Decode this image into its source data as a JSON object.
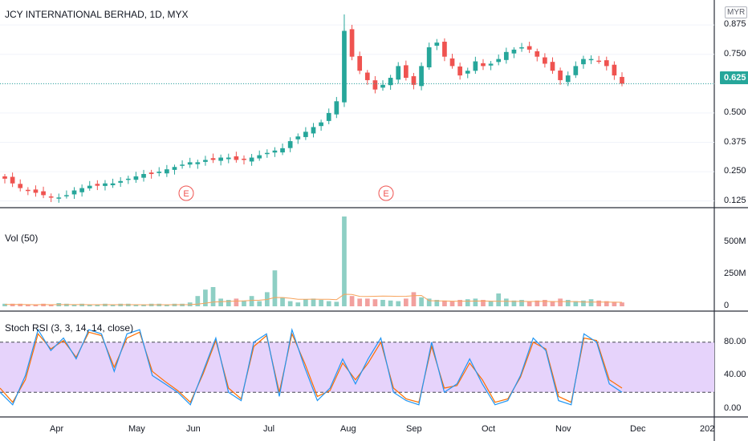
{
  "header": {
    "symbol_title": "JCY INTERNATIONAL BERHAD, 1D, MYX",
    "currency": "MYR"
  },
  "price_pane": {
    "current_price": "0.625",
    "y_ticks": [
      "0.125",
      "0.250",
      "0.375",
      "0.500",
      "0.625",
      "0.750",
      "0.875"
    ],
    "earnings_marker": "E"
  },
  "volume_pane": {
    "title": "Vol (50)",
    "y_ticks": [
      "0",
      "250M",
      "500M"
    ]
  },
  "stoch_pane": {
    "title": "Stoch RSI (3, 3, 14, 14, close)",
    "y_ticks": [
      "0.00",
      "40.00",
      "80.00"
    ],
    "upper_band": 80,
    "lower_band": 20
  },
  "x_axis": {
    "labels": [
      "Apr",
      "May",
      "Jun",
      "Jul",
      "Aug",
      "Sep",
      "Oct",
      "Nov",
      "Dec",
      "202"
    ]
  },
  "colors": {
    "up": "#26a69a",
    "down": "#ef5350",
    "vol_up": "#8ecfc4",
    "vol_down": "#f2a09e",
    "ma_line": "#f7a35c",
    "k_line": "#2196f3",
    "d_line": "#ff6d00",
    "band_fill": "#e6d3fb",
    "price_line": "#26a69a"
  },
  "chart_data": {
    "type": "candlestick",
    "x_start": "2020-03-18",
    "x_end": "2020-11-24",
    "ylim": [
      0.1,
      0.92
    ],
    "close_series": [
      0.22,
      0.2,
      0.18,
      0.17,
      0.16,
      0.15,
      0.14,
      0.14,
      0.15,
      0.17,
      0.18,
      0.19,
      0.19,
      0.2,
      0.2,
      0.21,
      0.22,
      0.23,
      0.24,
      0.24,
      0.25,
      0.26,
      0.27,
      0.28,
      0.29,
      0.29,
      0.3,
      0.3,
      0.31,
      0.31,
      0.3,
      0.3,
      0.31,
      0.32,
      0.33,
      0.34,
      0.35,
      0.38,
      0.4,
      0.42,
      0.44,
      0.46,
      0.5,
      0.55,
      0.85,
      0.74,
      0.68,
      0.64,
      0.6,
      0.62,
      0.65,
      0.7,
      0.65,
      0.62,
      0.7,
      0.78,
      0.8,
      0.74,
      0.7,
      0.66,
      0.68,
      0.72,
      0.7,
      0.71,
      0.73,
      0.76,
      0.77,
      0.78,
      0.77,
      0.74,
      0.71,
      0.68,
      0.64,
      0.66,
      0.7,
      0.73,
      0.73,
      0.72,
      0.7,
      0.66,
      0.625
    ],
    "volume_series": [
      20,
      20,
      20,
      15,
      15,
      20,
      15,
      25,
      20,
      15,
      20,
      15,
      15,
      20,
      15,
      20,
      20,
      15,
      15,
      20,
      20,
      15,
      20,
      20,
      30,
      80,
      130,
      150,
      60,
      50,
      60,
      45,
      80,
      40,
      110,
      280,
      70,
      40,
      30,
      55,
      60,
      50,
      40,
      35,
      700,
      80,
      60,
      60,
      55,
      50,
      45,
      40,
      60,
      110,
      70,
      60,
      50,
      45,
      40,
      50,
      55,
      60,
      50,
      40,
      100,
      60,
      45,
      50,
      40,
      45,
      50,
      40,
      60,
      50,
      40,
      45,
      55,
      45,
      40,
      35,
      30
    ],
    "stoch_k": [
      20,
      5,
      40,
      95,
      70,
      85,
      60,
      95,
      90,
      45,
      90,
      95,
      40,
      30,
      20,
      5,
      45,
      85,
      20,
      10,
      80,
      90,
      15,
      95,
      50,
      10,
      25,
      60,
      30,
      60,
      85,
      20,
      10,
      5,
      80,
      20,
      30,
      60,
      30,
      5,
      10,
      40,
      85,
      70,
      10,
      5,
      90,
      80,
      30,
      20
    ],
    "stoch_d": [
      25,
      8,
      35,
      90,
      72,
      82,
      62,
      92,
      88,
      50,
      85,
      92,
      45,
      33,
      22,
      8,
      42,
      82,
      25,
      12,
      75,
      88,
      20,
      90,
      55,
      15,
      22,
      55,
      35,
      55,
      80,
      25,
      12,
      8,
      75,
      25,
      28,
      55,
      35,
      8,
      12,
      38,
      80,
      72,
      15,
      8,
      85,
      82,
      35,
      25
    ]
  }
}
